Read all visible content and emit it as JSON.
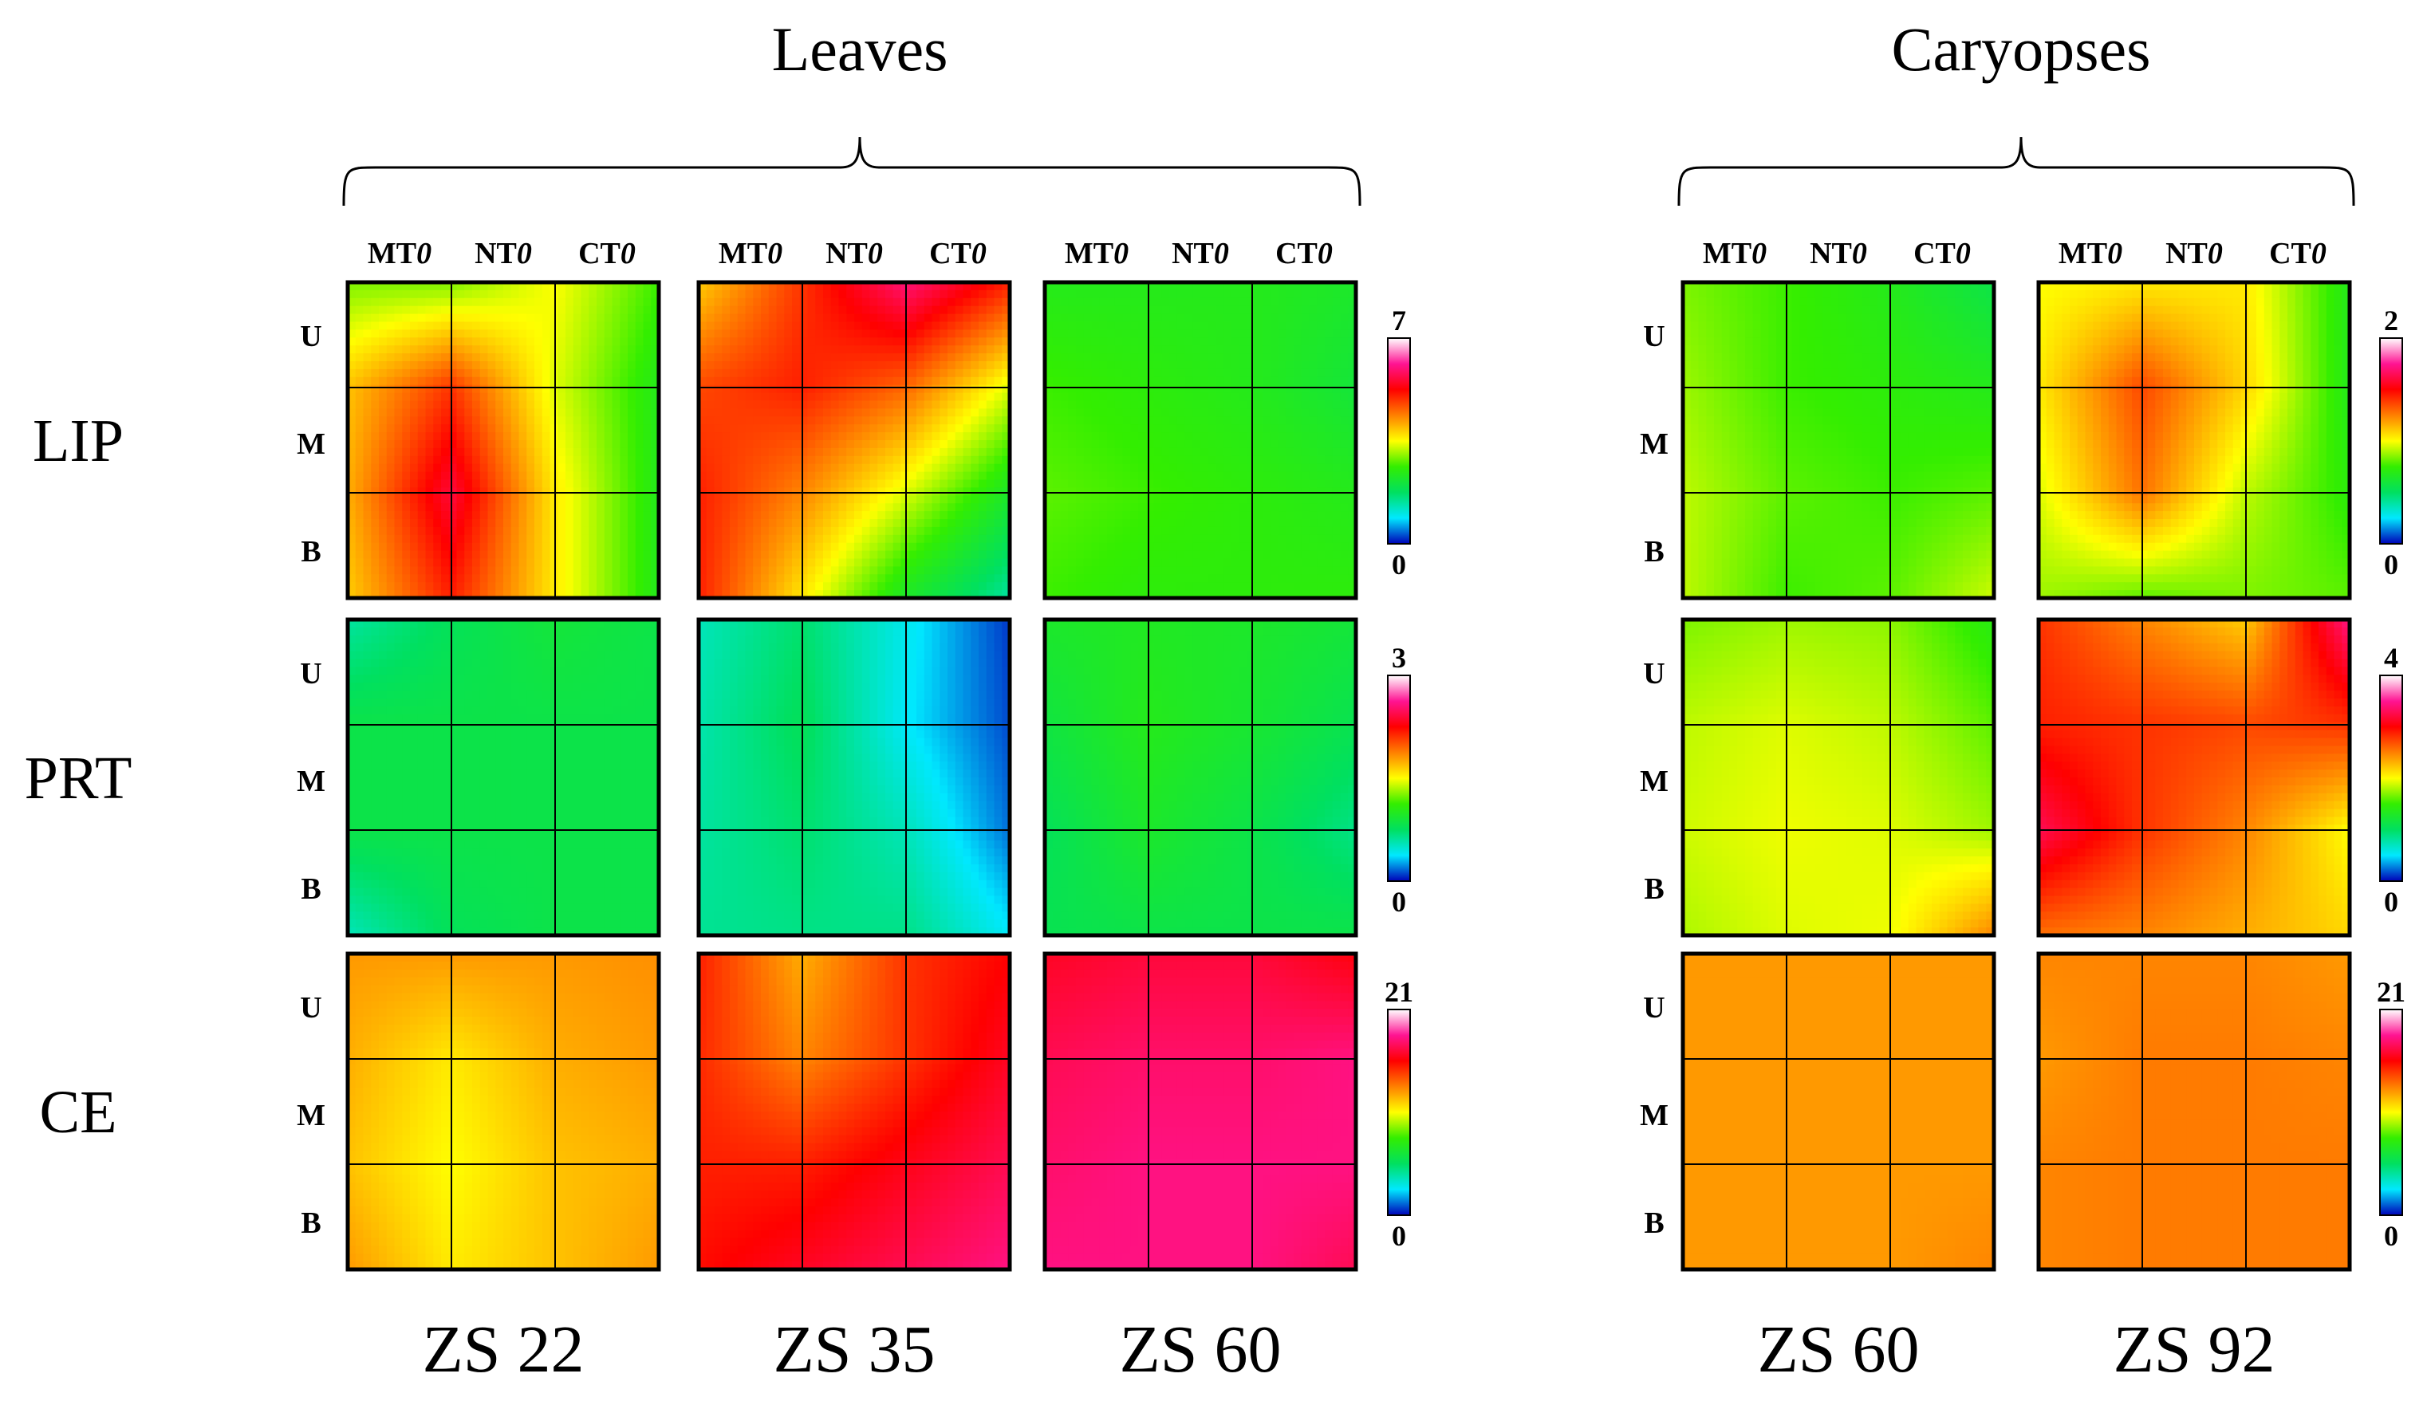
{
  "chart_data": {
    "type": "heatmap",
    "groups": [
      {
        "title": "Leaves",
        "stages": [
          "ZS 22",
          "ZS 35",
          "ZS 60"
        ]
      },
      {
        "title": "Caryopses",
        "stages": [
          "ZS 60",
          "ZS 92"
        ]
      }
    ],
    "row_labels": [
      "LIP",
      "PRT",
      "CE"
    ],
    "col_labels": [
      [
        "MT",
        "0"
      ],
      [
        "NT",
        "0"
      ],
      [
        "CT",
        "0"
      ]
    ],
    "pos_labels": [
      "U",
      "M",
      "B"
    ],
    "scales": [
      {
        "variable": "LIP",
        "leaves": {
          "min": 0,
          "max": 7
        },
        "caryopses": {
          "min": 0,
          "max": 2
        }
      },
      {
        "variable": "PRT",
        "leaves": {
          "min": 0,
          "max": 3
        },
        "caryopses": {
          "min": 0,
          "max": 4
        }
      },
      {
        "variable": "CE",
        "leaves": {
          "min": 0,
          "max": 21
        },
        "caryopses": {
          "min": 0,
          "max": 21
        }
      }
    ],
    "scale_labels": {
      "leaves": [
        [
          "7",
          "0"
        ],
        [
          "3",
          "0"
        ],
        [
          "21",
          "0"
        ]
      ],
      "caryopses": [
        [
          "2",
          "0"
        ],
        [
          "4",
          "0"
        ],
        [
          "21",
          "0"
        ]
      ]
    },
    "colormap": [
      "#0000b8",
      "#00e8ff",
      "#00e060",
      "#33ee00",
      "#ffff00",
      "#ff8000",
      "#ff0000",
      "#ff1493",
      "#ffffff"
    ],
    "note": "values are normalized 0-1 positions on each panel's color scale; 4x4 corner samples, rows U(top)->B(bottom), columns MT->CT",
    "panels": [
      {
        "group": "Leaves",
        "stage": "ZS 22",
        "variable": "LIP",
        "grid": [
          [
            0.42,
            0.42,
            0.5,
            0.38
          ],
          [
            0.56,
            0.7,
            0.48,
            0.34
          ],
          [
            0.58,
            0.8,
            0.52,
            0.34
          ],
          [
            0.55,
            0.72,
            0.52,
            0.34
          ]
        ]
      },
      {
        "group": "Leaves",
        "stage": "ZS 35",
        "variable": "LIP",
        "grid": [
          [
            0.55,
            0.7,
            0.85,
            0.72
          ],
          [
            0.68,
            0.72,
            0.65,
            0.48
          ],
          [
            0.72,
            0.62,
            0.48,
            0.32
          ],
          [
            0.72,
            0.52,
            0.32,
            0.2
          ]
        ]
      },
      {
        "group": "Leaves",
        "stage": "ZS 60",
        "variable": "LIP",
        "grid": [
          [
            0.34,
            0.34,
            0.34,
            0.32
          ],
          [
            0.38,
            0.36,
            0.34,
            0.3
          ],
          [
            0.4,
            0.38,
            0.36,
            0.34
          ],
          [
            0.38,
            0.36,
            0.36,
            0.36
          ]
        ]
      },
      {
        "group": "Leaves",
        "stage": "ZS 22",
        "variable": "PRT",
        "grid": [
          [
            0.2,
            0.26,
            0.3,
            0.28
          ],
          [
            0.28,
            0.28,
            0.28,
            0.28
          ],
          [
            0.28,
            0.28,
            0.28,
            0.28
          ],
          [
            0.18,
            0.26,
            0.28,
            0.28
          ]
        ]
      },
      {
        "group": "Leaves",
        "stage": "ZS 35",
        "variable": "PRT",
        "grid": [
          [
            0.18,
            0.24,
            0.14,
            0.03
          ],
          [
            0.19,
            0.26,
            0.13,
            0.04
          ],
          [
            0.2,
            0.24,
            0.18,
            0.06
          ],
          [
            0.21,
            0.22,
            0.22,
            0.13
          ]
        ]
      },
      {
        "group": "Leaves",
        "stage": "ZS 60",
        "variable": "PRT",
        "grid": [
          [
            0.32,
            0.33,
            0.32,
            0.3
          ],
          [
            0.29,
            0.34,
            0.31,
            0.27
          ],
          [
            0.26,
            0.32,
            0.28,
            0.22
          ],
          [
            0.27,
            0.28,
            0.28,
            0.28
          ]
        ]
      },
      {
        "group": "Leaves",
        "stage": "ZS 22",
        "variable": "CE",
        "grid": [
          [
            0.6,
            0.6,
            0.6,
            0.61
          ],
          [
            0.58,
            0.52,
            0.58,
            0.6
          ],
          [
            0.56,
            0.5,
            0.56,
            0.58
          ],
          [
            0.6,
            0.52,
            0.56,
            0.6
          ]
        ]
      },
      {
        "group": "Leaves",
        "stage": "ZS 35",
        "variable": "CE",
        "grid": [
          [
            0.72,
            0.58,
            0.7,
            0.75
          ],
          [
            0.71,
            0.62,
            0.7,
            0.78
          ],
          [
            0.72,
            0.72,
            0.77,
            0.82
          ],
          [
            0.74,
            0.78,
            0.82,
            0.86
          ]
        ]
      },
      {
        "group": "Leaves",
        "stage": "ZS 60",
        "variable": "CE",
        "grid": [
          [
            0.78,
            0.8,
            0.8,
            0.76
          ],
          [
            0.82,
            0.84,
            0.84,
            0.86
          ],
          [
            0.84,
            0.86,
            0.86,
            0.86
          ],
          [
            0.86,
            0.86,
            0.86,
            0.82
          ]
        ]
      },
      {
        "group": "Caryopses",
        "stage": "ZS 60",
        "variable": "LIP",
        "grid": [
          [
            0.42,
            0.38,
            0.34,
            0.28
          ],
          [
            0.44,
            0.38,
            0.36,
            0.34
          ],
          [
            0.46,
            0.4,
            0.38,
            0.4
          ],
          [
            0.46,
            0.38,
            0.4,
            0.47
          ]
        ]
      },
      {
        "group": "Caryopses",
        "stage": "ZS 92",
        "variable": "LIP",
        "grid": [
          [
            0.5,
            0.52,
            0.52,
            0.34
          ],
          [
            0.52,
            0.68,
            0.54,
            0.34
          ],
          [
            0.48,
            0.64,
            0.46,
            0.36
          ],
          [
            0.44,
            0.4,
            0.42,
            0.4
          ]
        ]
      },
      {
        "group": "Caryopses",
        "stage": "ZS 60",
        "variable": "PRT",
        "grid": [
          [
            0.42,
            0.44,
            0.43,
            0.35
          ],
          [
            0.46,
            0.48,
            0.46,
            0.4
          ],
          [
            0.47,
            0.49,
            0.48,
            0.44
          ],
          [
            0.45,
            0.48,
            0.49,
            0.62
          ]
        ]
      },
      {
        "group": "Caryopses",
        "stage": "ZS 92",
        "variable": "PRT",
        "grid": [
          [
            0.7,
            0.62,
            0.55,
            0.86
          ],
          [
            0.72,
            0.7,
            0.68,
            0.7
          ],
          [
            0.82,
            0.7,
            0.62,
            0.5
          ],
          [
            0.64,
            0.62,
            0.58,
            0.54
          ]
        ]
      },
      {
        "group": "Caryopses",
        "stage": "ZS 60",
        "variable": "CE",
        "grid": [
          [
            0.6,
            0.6,
            0.6,
            0.6
          ],
          [
            0.6,
            0.6,
            0.6,
            0.6
          ],
          [
            0.6,
            0.6,
            0.6,
            0.6
          ],
          [
            0.6,
            0.6,
            0.6,
            0.62
          ]
        ]
      },
      {
        "group": "Caryopses",
        "stage": "ZS 92",
        "variable": "CE",
        "grid": [
          [
            0.62,
            0.62,
            0.62,
            0.6
          ],
          [
            0.6,
            0.63,
            0.63,
            0.62
          ],
          [
            0.62,
            0.63,
            0.63,
            0.63
          ],
          [
            0.62,
            0.63,
            0.63,
            0.63
          ]
        ]
      }
    ]
  }
}
